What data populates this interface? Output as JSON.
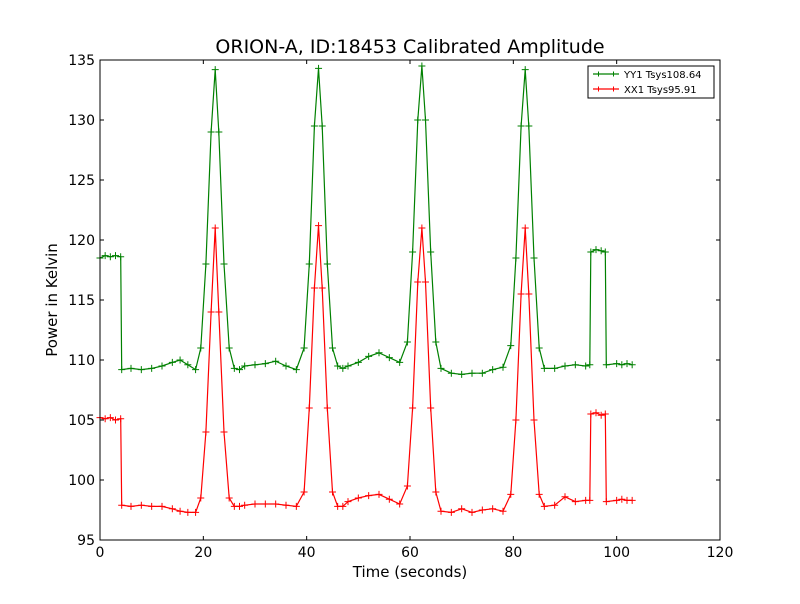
{
  "chart_data": {
    "type": "line",
    "title": "ORION-A, ID:18453 Calibrated Amplitude",
    "xlabel": "Time (seconds)",
    "ylabel": "Power in Kelvin",
    "xlim": [
      0,
      120
    ],
    "ylim": [
      95,
      135
    ],
    "xticks": [
      0,
      20,
      40,
      60,
      80,
      100,
      120
    ],
    "yticks": [
      95,
      100,
      105,
      110,
      115,
      120,
      125,
      130,
      135
    ],
    "grid": false,
    "legend_placement": "top-right",
    "series": [
      {
        "name": "YY1 Tsys108.64",
        "color": "#008000",
        "marker": "+",
        "x": [
          0,
          1,
          2,
          3,
          4,
          4.2,
          6,
          8,
          10,
          12,
          14,
          15.5,
          17,
          18.5,
          19.5,
          20.5,
          21.5,
          22.3,
          23,
          24,
          25,
          26,
          27,
          28,
          30,
          32,
          34,
          36,
          38,
          39.5,
          40.5,
          41.5,
          42.3,
          43,
          44,
          45,
          46,
          47,
          48,
          50,
          52,
          54,
          56,
          58,
          59.5,
          60.5,
          61.5,
          62.3,
          63,
          64,
          65,
          66,
          68,
          70,
          72,
          74,
          76,
          78,
          79.5,
          80.5,
          81.5,
          82.3,
          83,
          84,
          85,
          86,
          88,
          90,
          92,
          94,
          94.8,
          95,
          96,
          97,
          97.8,
          98,
          100,
          101,
          102,
          103
        ],
        "y": [
          118.5,
          118.7,
          118.6,
          118.7,
          118.6,
          109.2,
          109.3,
          109.2,
          109.3,
          109.5,
          109.8,
          110.0,
          109.6,
          109.2,
          111.0,
          118.0,
          129.0,
          134.2,
          129.0,
          118.0,
          111.0,
          109.3,
          109.2,
          109.5,
          109.6,
          109.7,
          109.9,
          109.5,
          109.2,
          111.0,
          118.0,
          129.5,
          134.3,
          129.5,
          118.0,
          111.0,
          109.5,
          109.3,
          109.5,
          109.8,
          110.3,
          110.6,
          110.2,
          109.8,
          111.5,
          119.0,
          130.0,
          134.5,
          130.0,
          119.0,
          111.5,
          109.3,
          108.9,
          108.8,
          108.9,
          108.9,
          109.2,
          109.4,
          111.2,
          118.5,
          129.5,
          134.2,
          129.5,
          118.5,
          111.0,
          109.3,
          109.3,
          109.5,
          109.6,
          109.5,
          109.6,
          119.0,
          119.2,
          119.1,
          119.0,
          109.6,
          109.7,
          109.6,
          109.7,
          109.6
        ]
      },
      {
        "name": "XX1 Tsys95.91",
        "color": "#ff0000",
        "marker": "+",
        "x": [
          0,
          1,
          2,
          3,
          4,
          4.2,
          6,
          8,
          10,
          12,
          14,
          15.5,
          17,
          18.5,
          19.5,
          20.5,
          21.5,
          22.3,
          23,
          24,
          25,
          26,
          27,
          28,
          30,
          32,
          34,
          36,
          38,
          39.5,
          40.5,
          41.5,
          42.3,
          43,
          44,
          45,
          46,
          47,
          48,
          50,
          52,
          54,
          56,
          58,
          59.5,
          60.5,
          61.5,
          62.3,
          63,
          64,
          65,
          66,
          68,
          70,
          72,
          74,
          76,
          78,
          79.5,
          80.5,
          81.5,
          82.3,
          83,
          84,
          85,
          86,
          88,
          90,
          92,
          94,
          94.8,
          95,
          96,
          97,
          97.8,
          98,
          100,
          101,
          102,
          103
        ],
        "y": [
          105.2,
          105.1,
          105.2,
          105.0,
          105.1,
          97.9,
          97.8,
          97.9,
          97.8,
          97.8,
          97.6,
          97.4,
          97.3,
          97.3,
          98.5,
          104.0,
          114.0,
          121.0,
          114.0,
          104.0,
          98.5,
          97.8,
          97.8,
          97.9,
          98.0,
          98.0,
          98.0,
          97.9,
          97.8,
          99.0,
          106.0,
          116.0,
          121.2,
          116.0,
          106.0,
          99.0,
          97.8,
          97.8,
          98.2,
          98.5,
          98.7,
          98.8,
          98.4,
          98.0,
          99.5,
          106.0,
          116.5,
          121.0,
          116.5,
          106.0,
          99.0,
          97.4,
          97.3,
          97.6,
          97.3,
          97.5,
          97.6,
          97.4,
          98.8,
          105.0,
          115.5,
          121.0,
          115.5,
          105.0,
          98.8,
          97.8,
          97.9,
          98.6,
          98.2,
          98.3,
          98.3,
          105.5,
          105.6,
          105.4,
          105.5,
          98.2,
          98.3,
          98.4,
          98.3,
          98.3
        ]
      }
    ]
  }
}
